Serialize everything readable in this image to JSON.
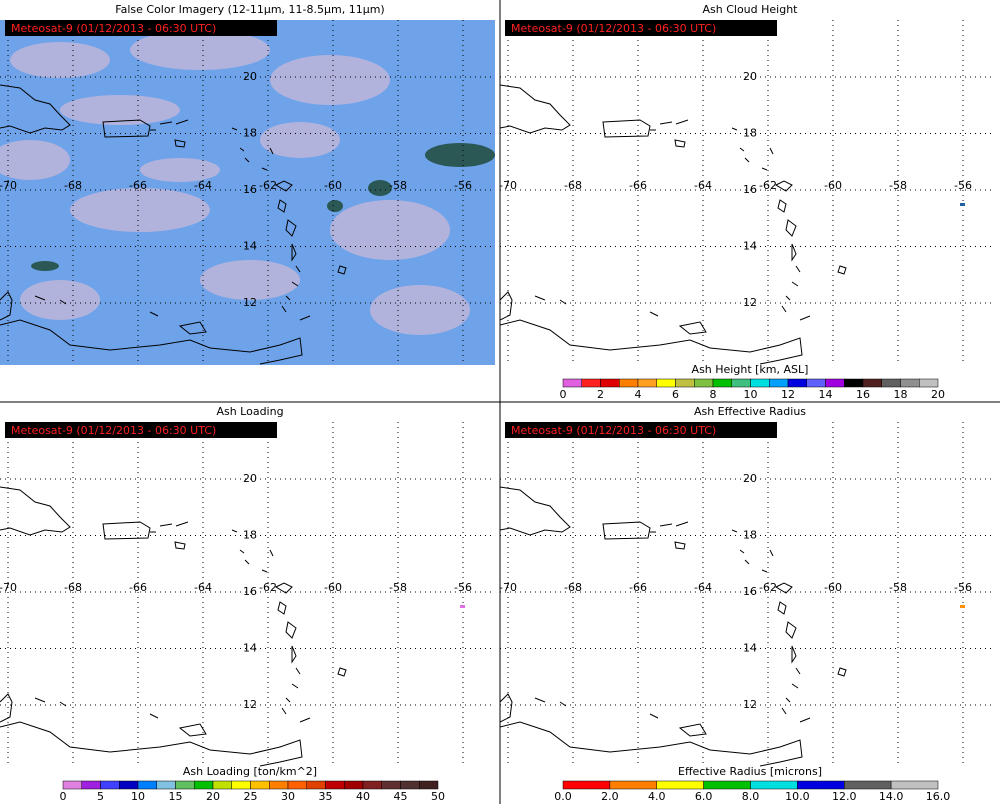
{
  "panels": [
    {
      "title": "False Color Imagery (12-11μm, 11-8.5μm, 11μm)",
      "banner": "Meteosat-9  (01/12/2013 - 06:30 UTC)",
      "imagery": true
    },
    {
      "title": "Ash Cloud Height",
      "banner": "Meteosat-9  (01/12/2013 - 06:30 UTC)",
      "colorbar": {
        "label": "Ash Height [km, ASL]",
        "ticks": [
          "0",
          "2",
          "4",
          "6",
          "8",
          "10",
          "12",
          "14",
          "16",
          "18",
          "20"
        ],
        "colors": [
          "#e060e0",
          "#ff2020",
          "#e00000",
          "#ff8000",
          "#ffa020",
          "#ffff00",
          "#c0c040",
          "#80c040",
          "#00c000",
          "#40c080",
          "#00e0e0",
          "#00a0ff",
          "#0000e0",
          "#6060ff",
          "#a000e0",
          "#000000",
          "#502020",
          "#606060",
          "#909090",
          "#c0c0c0"
        ]
      }
    },
    {
      "title": "Ash Loading",
      "banner": "Meteosat-9  (01/12/2013 - 06:30 UTC)",
      "colorbar": {
        "label": "Ash Loading [ton/km^2]",
        "ticks": [
          "0",
          "5",
          "10",
          "15",
          "20",
          "25",
          "30",
          "35",
          "40",
          "45",
          "50"
        ],
        "colors": [
          "#e080e0",
          "#a020e0",
          "#4040ff",
          "#0000c0",
          "#0080ff",
          "#80c0e0",
          "#60c060",
          "#00c000",
          "#c0e000",
          "#ffff00",
          "#ffc000",
          "#ff8000",
          "#ff6000",
          "#e04000",
          "#c00000",
          "#a00000",
          "#802020",
          "#603030",
          "#503030",
          "#402020"
        ]
      }
    },
    {
      "title": "Ash Effective Radius",
      "banner": "Meteosat-9  (01/12/2013 - 06:30 UTC)",
      "colorbar": {
        "label": "Effective Radius [microns]",
        "ticks": [
          "0.0",
          "2.0",
          "4.0",
          "6.0",
          "8.0",
          "10.0",
          "12.0",
          "14.0",
          "16.0"
        ],
        "colors": [
          "#ff0000",
          "#ff8000",
          "#ffff00",
          "#00c000",
          "#00e0e0",
          "#0000e0",
          "#606060",
          "#c0c0c0"
        ]
      }
    }
  ],
  "grid": {
    "lat": [
      20,
      18,
      16,
      14,
      12
    ],
    "lon": [
      -70,
      -68,
      -66,
      -64,
      -62,
      -60,
      -58,
      -56
    ]
  }
}
